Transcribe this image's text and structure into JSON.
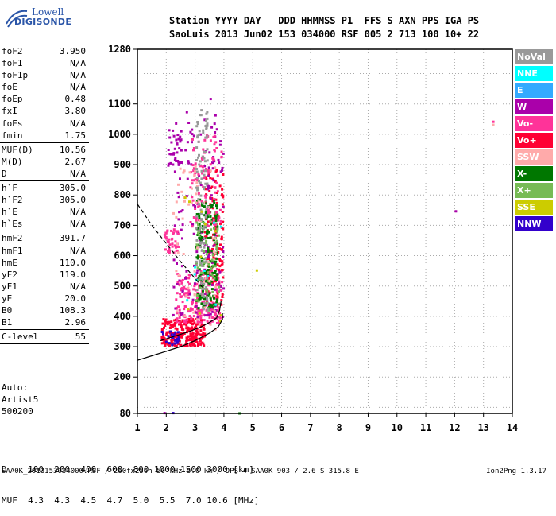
{
  "logo": {
    "line1": "Lowell",
    "line2": "DIGISONDE"
  },
  "header": {
    "row1": "Station YYYY DAY   DDD HHMMSS P1  FFS S AXN PPS IGA PS",
    "row2": "SaoLuis 2013 Jun02 153 034000 RSF 005 2 713 100 10+ 22"
  },
  "params": [
    {
      "k": "foF2",
      "v": "3.950"
    },
    {
      "k": "foF1",
      "v": "N/A"
    },
    {
      "k": "foF1p",
      "v": "N/A"
    },
    {
      "k": "foE",
      "v": "N/A"
    },
    {
      "k": "foEp",
      "v": "0.48"
    },
    {
      "k": "fxI",
      "v": "3.80"
    },
    {
      "k": "foEs",
      "v": "N/A"
    },
    {
      "k": "fmin",
      "v": "1.75"
    },
    {
      "sep": true
    },
    {
      "k": "MUF(D)",
      "v": "10.56"
    },
    {
      "k": "M(D)",
      "v": "2.67"
    },
    {
      "k": "D",
      "v": "N/A"
    },
    {
      "sep": true
    },
    {
      "k": "h`F",
      "v": "305.0"
    },
    {
      "k": "h`F2",
      "v": "305.0"
    },
    {
      "k": "h`E",
      "v": "N/A"
    },
    {
      "k": "h`Es",
      "v": "N/A"
    },
    {
      "sep": true
    },
    {
      "k": "hmF2",
      "v": "391.7"
    },
    {
      "k": "hmF1",
      "v": "N/A"
    },
    {
      "k": "hmE",
      "v": "110.0"
    },
    {
      "k": "yF2",
      "v": "119.0"
    },
    {
      "k": "yF1",
      "v": "N/A"
    },
    {
      "k": "yE",
      "v": "20.0"
    },
    {
      "k": "B0",
      "v": "108.3"
    },
    {
      "k": "B1",
      "v": "2.96"
    },
    {
      "sep": true
    },
    {
      "k": "C-level",
      "v": "55"
    },
    {
      "sep": true
    }
  ],
  "auto": {
    "line1": "Auto:",
    "line2": "Artist5",
    "line3": "500200"
  },
  "muf_table": {
    "row1": "D    100  200  400  600  800 1000 1500 3000 [km]",
    "row2": "MUF  4.3  4.3  4.5  4.7  5.0  5.5  7.0 10.6 [MHz]"
  },
  "footer": {
    "left": "SAA0K_2013153034000.RSF / 260fx256h 50 kHz 5.0 km / DPS-4 SAA0K 903 / 2.6 S 315.8 E",
    "right": "Ion2Png 1.3.17"
  },
  "legend": [
    {
      "label": "NoVal",
      "color": "#999999"
    },
    {
      "label": "NNE",
      "color": "#00ffff"
    },
    {
      "label": "E",
      "color": "#33aaff"
    },
    {
      "label": "W",
      "color": "#aa00aa"
    },
    {
      "label": "Vo-",
      "color": "#ff3399"
    },
    {
      "label": "Vo+",
      "color": "#ff0033"
    },
    {
      "label": "SSW",
      "color": "#ffaaaa"
    },
    {
      "label": "X-",
      "color": "#007700"
    },
    {
      "label": "X+",
      "color": "#77bb55"
    },
    {
      "label": "SSE",
      "color": "#cccc00"
    },
    {
      "label": "NNW",
      "color": "#3300cc"
    }
  ],
  "chart_data": {
    "type": "scatter",
    "xlim": [
      1,
      14
    ],
    "ylim": [
      80,
      1280
    ],
    "x_ticks": [
      "1",
      "2",
      "3",
      "4",
      "5",
      "6",
      "7",
      "8",
      "9",
      "10",
      "11",
      "12",
      "13",
      "14"
    ],
    "y_ticks": [
      {
        "v": 80,
        "label": "80"
      },
      {
        "v": 200,
        "label": "200"
      },
      {
        "v": 300,
        "label": "300"
      },
      {
        "v": 400,
        "label": "400"
      },
      {
        "v": 500,
        "label": "500"
      },
      {
        "v": 600,
        "label": "600"
      },
      {
        "v": 700,
        "label": "700"
      },
      {
        "v": 800,
        "label": "800"
      },
      {
        "v": 900,
        "label": "900"
      },
      {
        "v": 1000,
        "label": "1000"
      },
      {
        "v": 1100,
        "label": "1100"
      },
      {
        "v": 1280,
        "label": "1280"
      }
    ],
    "grid": true,
    "profile_curve": [
      [
        1.0,
        255
      ],
      [
        1.5,
        270
      ],
      [
        2.0,
        285
      ],
      [
        2.5,
        300
      ],
      [
        3.0,
        320
      ],
      [
        3.5,
        345
      ],
      [
        3.8,
        365
      ],
      [
        3.95,
        390
      ],
      [
        3.95,
        410
      ]
    ],
    "fit_curve": [
      [
        1.8,
        320
      ],
      [
        2.3,
        335
      ],
      [
        2.8,
        350
      ],
      [
        3.2,
        365
      ],
      [
        3.5,
        380
      ],
      [
        3.75,
        395
      ],
      [
        3.85,
        420
      ],
      [
        3.9,
        450
      ]
    ],
    "dashed_line": [
      [
        1.0,
        770
      ],
      [
        1.5,
        700
      ],
      [
        2.0,
        640
      ],
      [
        2.5,
        580
      ],
      [
        3.0,
        525
      ],
      [
        3.3,
        490
      ]
    ],
    "clusters": [
      {
        "color": "#ff0033",
        "n": 260,
        "x": [
          1.8,
          3.3
        ],
        "y": [
          305,
          395
        ]
      },
      {
        "color": "#ff3399",
        "n": 200,
        "x": [
          2.3,
          3.9
        ],
        "y": [
          380,
          560
        ]
      },
      {
        "color": "#ff0033",
        "n": 140,
        "x": [
          3.3,
          3.95
        ],
        "y": [
          440,
          900
        ]
      },
      {
        "color": "#aa00aa",
        "n": 150,
        "x": [
          2.2,
          3.95
        ],
        "y": [
          400,
          1080
        ]
      },
      {
        "color": "#007700",
        "n": 170,
        "x": [
          3.0,
          3.75
        ],
        "y": [
          430,
          790
        ]
      },
      {
        "color": "#77bb55",
        "n": 70,
        "x": [
          3.0,
          3.8
        ],
        "y": [
          420,
          760
        ]
      },
      {
        "color": "#ff3399",
        "n": 90,
        "x": [
          2.8,
          3.9
        ],
        "y": [
          700,
          1000
        ]
      },
      {
        "color": "#ff3399",
        "n": 40,
        "x": [
          1.9,
          2.4
        ],
        "y": [
          610,
          690
        ]
      },
      {
        "color": "#aa00aa",
        "n": 35,
        "x": [
          2.0,
          2.5
        ],
        "y": [
          900,
          1020
        ]
      },
      {
        "color": "#ffaaaa",
        "n": 60,
        "x": [
          2.2,
          3.7
        ],
        "y": [
          360,
          900
        ]
      },
      {
        "color": "#3300cc",
        "n": 25,
        "x": [
          1.8,
          2.4
        ],
        "y": [
          310,
          360
        ]
      },
      {
        "color": "#00ffff",
        "n": 10,
        "x": [
          2.5,
          3.9
        ],
        "y": [
          420,
          950
        ]
      },
      {
        "color": "#999999",
        "n": 120,
        "x": [
          3.0,
          3.4
        ],
        "y": [
          420,
          1100
        ]
      },
      {
        "color": "#cccc00",
        "n": 10,
        "x": [
          2.3,
          3.9
        ],
        "y": [
          350,
          800
        ]
      }
    ],
    "outliers": [
      {
        "x": 12.0,
        "y": 750,
        "color": "#aa00aa"
      },
      {
        "x": 13.3,
        "y": 1045,
        "color": "#ff3399"
      },
      {
        "x": 13.3,
        "y": 1035,
        "color": "#ffaaaa"
      },
      {
        "x": 4.5,
        "y": 84,
        "color": "#007700"
      },
      {
        "x": 1.9,
        "y": 85,
        "color": "#aa00aa"
      },
      {
        "x": 2.2,
        "y": 85,
        "color": "#3300cc"
      },
      {
        "x": 5.1,
        "y": 555,
        "color": "#cccc00"
      },
      {
        "x": 3.5,
        "y": 1120,
        "color": "#aa00aa"
      }
    ]
  }
}
